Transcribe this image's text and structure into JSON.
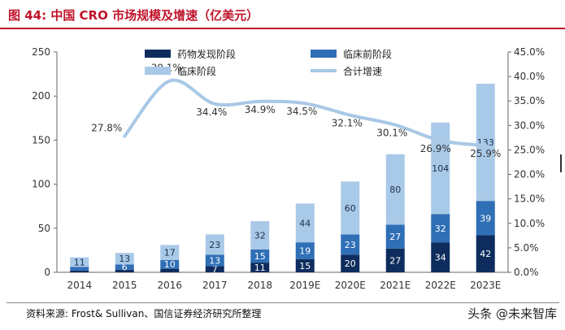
{
  "header": {
    "title": "图 44:  中国 CRO 市场规模及增速（亿美元）"
  },
  "footer": {
    "source": "资料来源: Frost& Sullivan、国信证券经济研究所整理",
    "brand": "头条 @未来智库"
  },
  "chart_data": {
    "type": "bar",
    "stacked": true,
    "categories": [
      "2014",
      "2015",
      "2016",
      "2017",
      "2018",
      "2019E",
      "2020E",
      "2021E",
      "2022E",
      "2023E"
    ],
    "series": [
      {
        "name": "药物发现阶段",
        "color": "#0e2d5e",
        "values": [
          2,
          3,
          4,
          7,
          11,
          15,
          20,
          27,
          34,
          42
        ]
      },
      {
        "name": "临床前阶段",
        "color": "#2f6fb6",
        "values": [
          4,
          6,
          10,
          13,
          15,
          19,
          23,
          27,
          32,
          39
        ]
      },
      {
        "name": "临床阶段",
        "color": "#a9c9e8",
        "values": [
          11,
          13,
          17,
          23,
          32,
          44,
          60,
          80,
          104,
          133
        ]
      }
    ],
    "segment_labels": [
      [
        "",
        "",
        "",
        "7",
        "11",
        "15",
        "20",
        "27",
        "34",
        "42"
      ],
      [
        "",
        "6",
        "10",
        "13",
        "15",
        "19",
        "23",
        "27",
        "32",
        "39"
      ],
      [
        "11",
        "13",
        "17",
        "23",
        "32",
        "44",
        "60",
        "80",
        "104",
        "133"
      ]
    ],
    "line": {
      "name": "合计增速",
      "color": "#a8c8e6",
      "values": [
        null,
        27.8,
        39.1,
        34.4,
        34.9,
        34.5,
        32.1,
        30.1,
        26.9,
        25.9
      ],
      "labels": [
        "",
        "27.8%",
        "39.1%",
        "34.4%",
        "34.9%",
        "34.5%",
        "32.1%",
        "30.1%",
        "26.9%",
        "25.9%"
      ]
    },
    "y_left": {
      "min": 0,
      "max": 250,
      "ticks": [
        0,
        50,
        100,
        150,
        200,
        250
      ]
    },
    "y_right": {
      "min": 0,
      "max": 45,
      "ticks": [
        "0.0%",
        "5.0%",
        "10.0%",
        "15.0%",
        "20.0%",
        "25.0%",
        "30.0%",
        "35.0%",
        "40.0%",
        "45.0%"
      ]
    },
    "legend_position": "top",
    "grid": false
  }
}
